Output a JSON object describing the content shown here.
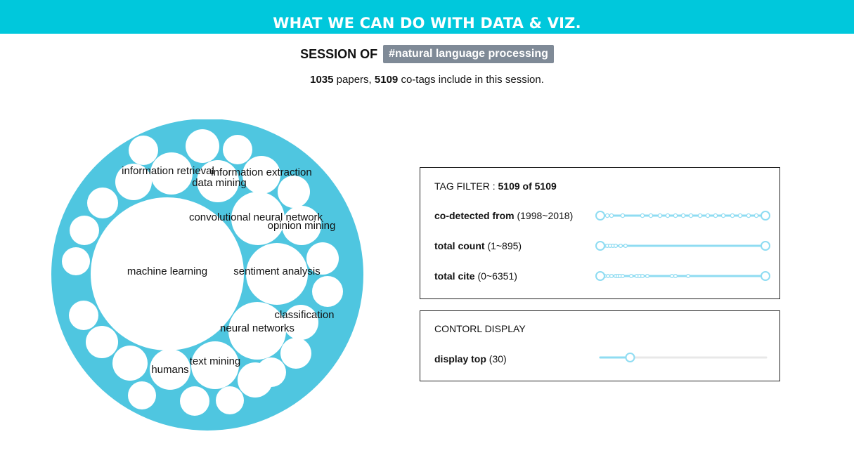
{
  "banner": {
    "title": "WHAT WE CAN DO WITH DATA & VIZ."
  },
  "session": {
    "label": "SESSION OF",
    "tag": "#natural language processing"
  },
  "stats": {
    "papers": "1035",
    "papers_word": "papers,",
    "cotags": "5109",
    "cotags_suffix": "co-tags include in this session."
  },
  "bubbles": {
    "labels": {
      "machine_learning": "machine learning",
      "sentiment_analysis": "sentiment analysis",
      "neural_networks": "neural networks",
      "classification": "classification",
      "convolutional": "convolutional neural network",
      "opinion_mining": "opinion mining",
      "information_retrieval": "information retrieval",
      "information_extraction": "information extraction",
      "data_mining": "data mining",
      "text_mining": "text mining",
      "humans": "humans"
    }
  },
  "tag_filter": {
    "title_prefix": "TAG FILTER : ",
    "title_value": "5109 of 5109",
    "rows": [
      {
        "label": "co-detected from",
        "range": "(1998~2018)"
      },
      {
        "label": "total count",
        "range": "(1~895)"
      },
      {
        "label": "total cite",
        "range": "(0~6351)"
      }
    ]
  },
  "control_display": {
    "title": "CONTORL DISPLAY",
    "label": "display top",
    "value": "(30)",
    "slider_fraction": 0.18
  },
  "colors": {
    "banner": "#00c8dc",
    "ring": "#4fc6e0",
    "tag_bg": "#7f8a97",
    "slider": "#8fdcf2"
  }
}
